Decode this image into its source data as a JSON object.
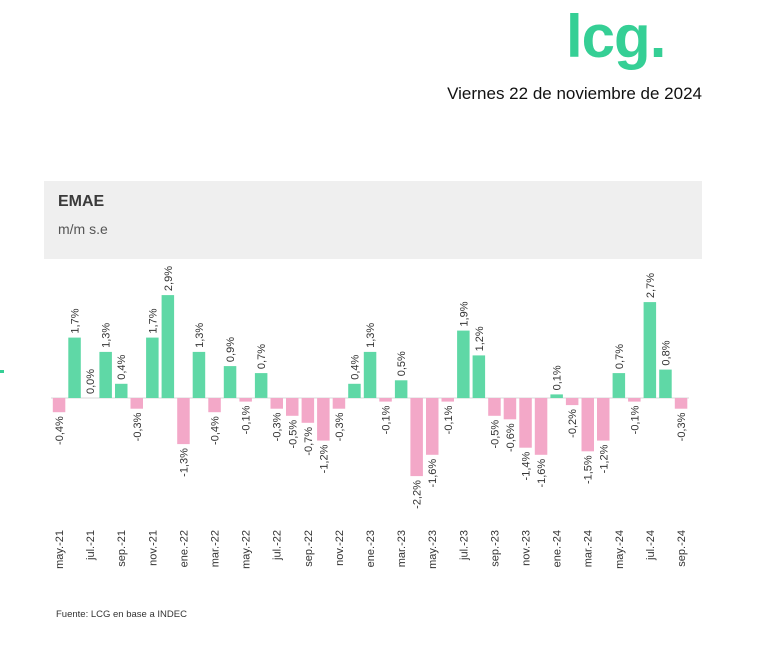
{
  "brand": {
    "logo_text": "lcg.",
    "accent": "#35cf95"
  },
  "date": "Viernes 22 de noviembre de 2024",
  "chart_header": {
    "title": "EMAE",
    "subtitle": "m/m s.e"
  },
  "source": "Fuente: LCG en base a INDEC",
  "colors": {
    "positive": "#5fd8a6",
    "negative": "#f3a8c8",
    "axis": "#d9d9d9"
  },
  "chart_data": {
    "type": "bar",
    "title": "EMAE",
    "subtitle": "m/m s.e",
    "categories": [
      "may.-21",
      "jun.-21",
      "jul.-21",
      "ago.-21",
      "sep.-21",
      "oct.-21",
      "nov.-21",
      "dic.-21",
      "ene.-22",
      "feb.-22",
      "mar.-22",
      "abr.-22",
      "may.-22",
      "jun.-22",
      "jul.-22",
      "ago.-22",
      "sep.-22",
      "oct.-22",
      "nov.-22",
      "dic.-22",
      "ene.-23",
      "feb.-23",
      "mar.-23",
      "abr.-23",
      "may.-23",
      "jun.-23",
      "jul.-23",
      "ago.-23",
      "sep.-23",
      "oct.-23",
      "nov.-23",
      "dic.-23",
      "ene.-24",
      "feb.-24",
      "mar.-24",
      "abr.-24",
      "may.-24",
      "jun.-24",
      "jul.-24",
      "ago.-24",
      "sep.-24"
    ],
    "tick_labels": [
      "may.-21",
      "jul.-21",
      "sep.-21",
      "nov.-21",
      "ene.-22",
      "mar.-22",
      "may.-22",
      "jul.-22",
      "sep.-22",
      "nov.-22",
      "ene.-23",
      "mar.-23",
      "may.-23",
      "jul.-23",
      "sep.-23",
      "nov.-23",
      "ene.-24",
      "mar.-24",
      "may.-24",
      "jul.-24",
      "sep.-24"
    ],
    "values": [
      -0.4,
      1.7,
      0.0,
      1.3,
      0.4,
      -0.3,
      1.7,
      2.9,
      -1.3,
      1.3,
      -0.4,
      0.9,
      -0.1,
      0.7,
      -0.3,
      -0.5,
      -0.7,
      -1.2,
      -0.3,
      0.4,
      1.3,
      -0.1,
      0.5,
      -2.2,
      -1.6,
      -0.1,
      1.9,
      1.2,
      -0.5,
      -0.6,
      -1.4,
      -1.6,
      0.1,
      -0.2,
      -1.5,
      -1.2,
      0.7,
      -0.1,
      2.7,
      0.8,
      -0.3
    ],
    "data_labels": [
      "-0,4%",
      "1,7%",
      "0,0%",
      "1,3%",
      "0,4%",
      "-0,3%",
      "1,7%",
      "2,9%",
      "-1,3%",
      "1,3%",
      "-0,4%",
      "0,9%",
      "-0,1%",
      "0,7%",
      "-0,3%",
      "-0,5%",
      "-0,7%",
      "-1,2%",
      "-0,3%",
      "0,4%",
      "1,3%",
      "-0,1%",
      "0,5%",
      "-2,2%",
      "-1,6%",
      "-0,1%",
      "1,9%",
      "1,2%",
      "-0,5%",
      "-0,6%",
      "-1,4%",
      "-1,6%",
      "0,1%",
      "-0,2%",
      "-1,5%",
      "-1,2%",
      "0,7%",
      "-0,1%",
      "2,7%",
      "0,8%",
      "-0,3%"
    ],
    "grid": false,
    "legend": "none"
  }
}
